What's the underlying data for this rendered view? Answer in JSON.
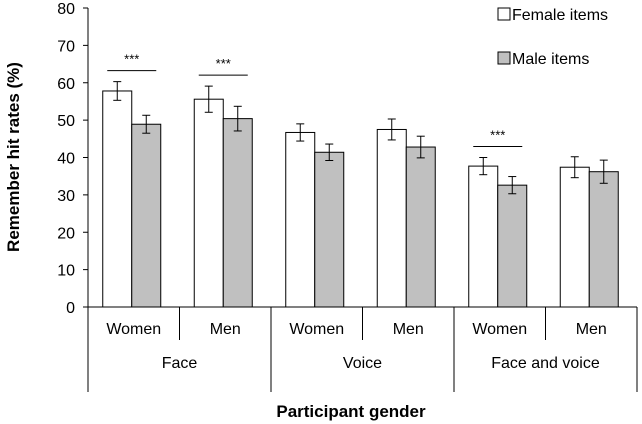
{
  "chart_data": {
    "type": "bar",
    "ylabel": "Remember hit rates (%)",
    "xlabel": "Participant gender",
    "ylim": [
      0,
      80
    ],
    "yticks": [
      "0",
      "10",
      "20",
      "30",
      "40",
      "50",
      "60",
      "70",
      "80"
    ],
    "grid": false,
    "legend_position": "top-right",
    "categories": [
      "Women",
      "Men",
      "Women",
      "Men",
      "Women",
      "Men"
    ],
    "groups": [
      "Face",
      "Voice",
      "Face and voice"
    ],
    "series": [
      {
        "name": "Female items",
        "color": "#ffffff",
        "values": [
          57.8,
          55.6,
          46.7,
          47.5,
          37.7,
          37.4
        ],
        "errors": [
          2.5,
          3.5,
          2.3,
          2.8,
          2.3,
          2.8
        ]
      },
      {
        "name": "Male items",
        "color": "#c0c0c0",
        "values": [
          48.9,
          50.4,
          41.4,
          42.8,
          32.6,
          36.2
        ],
        "errors": [
          2.4,
          3.3,
          2.2,
          2.9,
          2.3,
          3.1
        ]
      }
    ],
    "significance": [
      {
        "category_index": 0,
        "label": "***"
      },
      {
        "category_index": 1,
        "label": "***"
      },
      {
        "category_index": 4,
        "label": "***"
      }
    ]
  }
}
